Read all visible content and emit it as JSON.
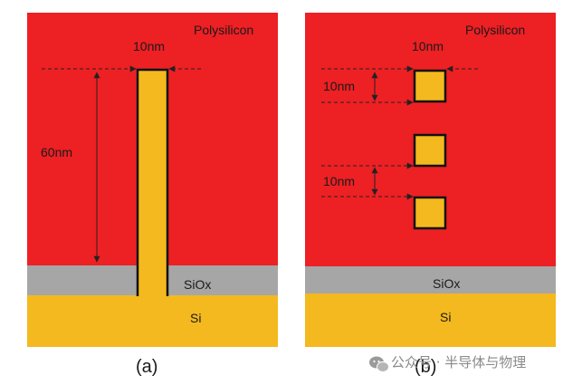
{
  "colors": {
    "polysilicon": "#ed2024",
    "siox": "#a6a6a6",
    "si": "#f4b91e",
    "nanostructure": "#f4b91e",
    "outline": "#111111",
    "dimension_line": "#222222"
  },
  "panel_a": {
    "polysilicon_label": "Polysilicon",
    "width_label": "10nm",
    "height_label": "60nm",
    "siox_label": "SiOx",
    "si_label": "Si",
    "caption": "(a)"
  },
  "panel_b": {
    "polysilicon_label": "Polysilicon",
    "width_label": "10nm",
    "spacing_label_1": "10nm",
    "spacing_label_2": "10nm",
    "siox_label": "SiOx",
    "si_label": "Si",
    "caption": "(b)"
  },
  "watermark": {
    "icon": "wechat-icon",
    "text": "公众号 · 半导体与物理"
  }
}
